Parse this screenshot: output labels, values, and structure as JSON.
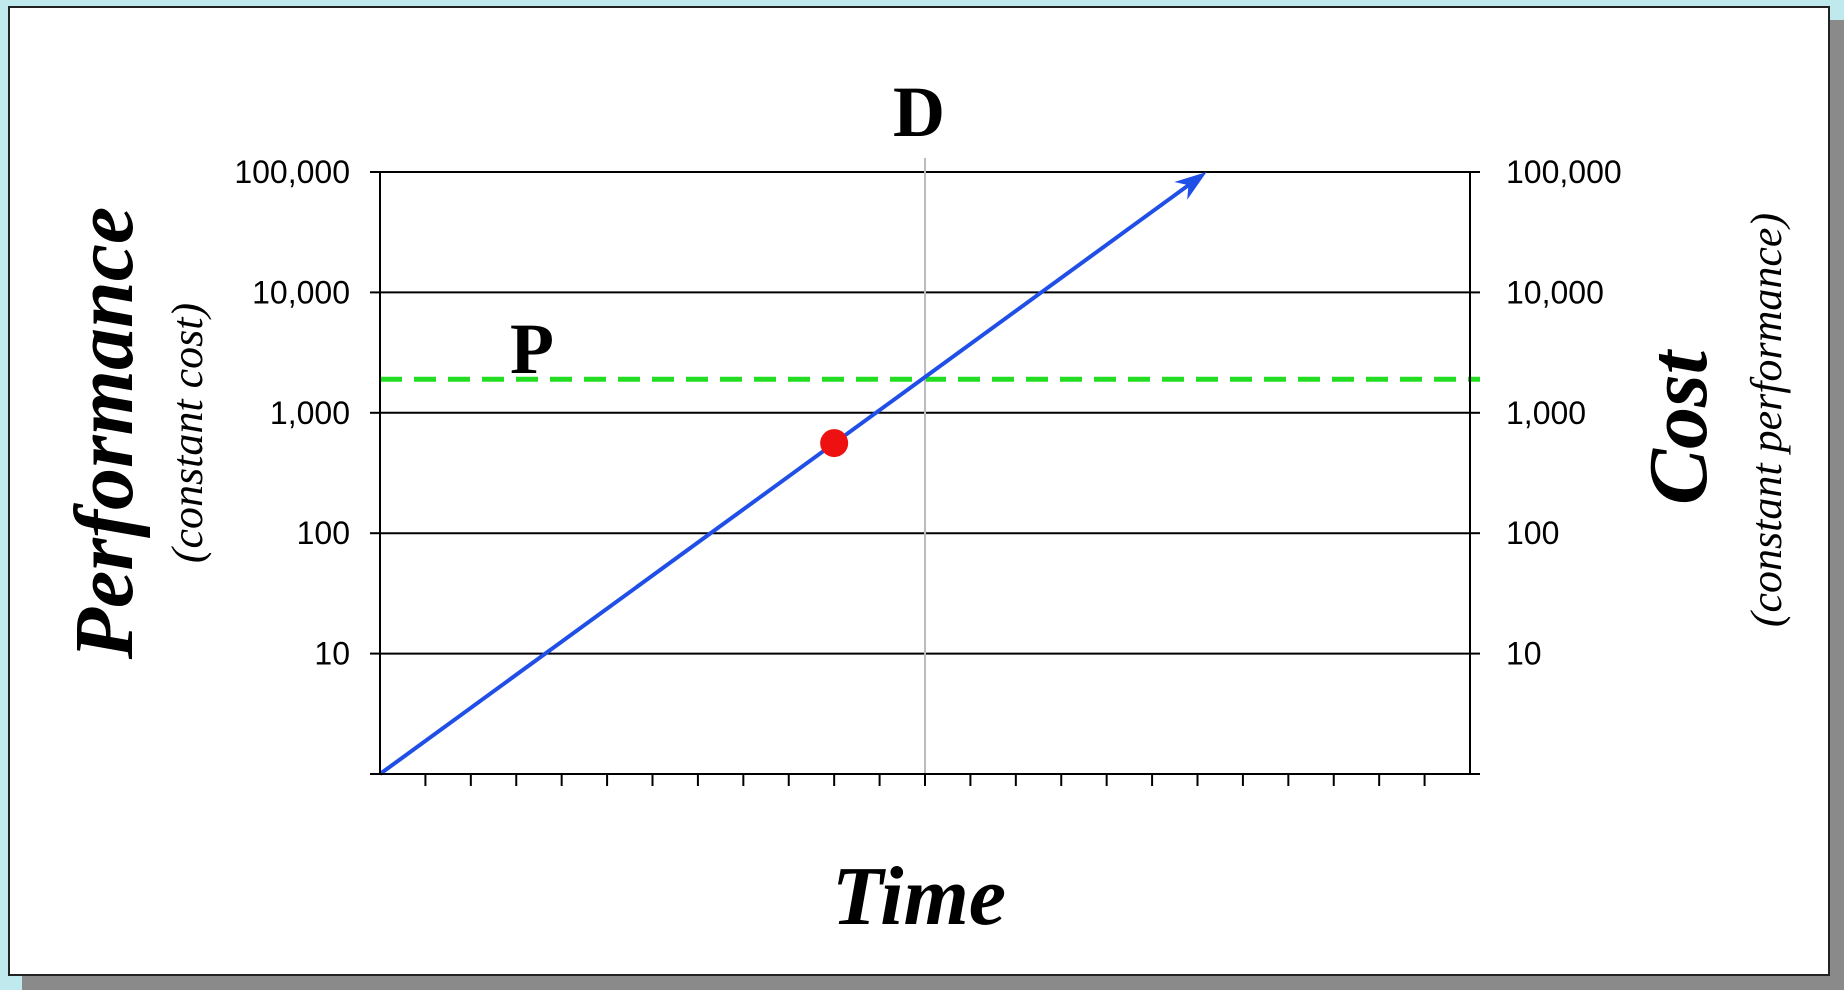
{
  "chart_data": {
    "type": "line",
    "y_scale": "log",
    "x_axis": {
      "label": "Time",
      "tick_count": 24,
      "tick_labels": []
    },
    "y_axis_left": {
      "label": "Performance",
      "sublabel": "(constant cost)",
      "range": [
        1,
        100000
      ],
      "tick_labels": [
        "100,000",
        "10,000",
        "1,000",
        "100",
        "10"
      ],
      "tick_values": [
        100000,
        10000,
        1000,
        100,
        10
      ]
    },
    "y_axis_right": {
      "label": "Cost",
      "sublabel": "(constant  performance)",
      "tick_labels": [
        "100,000",
        "10,000",
        "1,000",
        "100",
        "10"
      ],
      "tick_values": [
        100000,
        10000,
        1000,
        100,
        10
      ]
    },
    "grid": true,
    "series": [
      {
        "type": "arrow-line",
        "color": "#1f4fe6",
        "x": [
          0,
          18.2
        ],
        "y": [
          1,
          100000
        ]
      }
    ],
    "reference_lines": [
      {
        "orientation": "horizontal",
        "label": "P",
        "y": 1900,
        "color": "#22dd22",
        "style": "dashed"
      },
      {
        "orientation": "vertical",
        "label": "D",
        "x": 12,
        "color": "#bbbbbb",
        "style": "solid"
      }
    ],
    "points": [
      {
        "x": 10,
        "y": 560,
        "color": "#ee1111"
      }
    ]
  }
}
